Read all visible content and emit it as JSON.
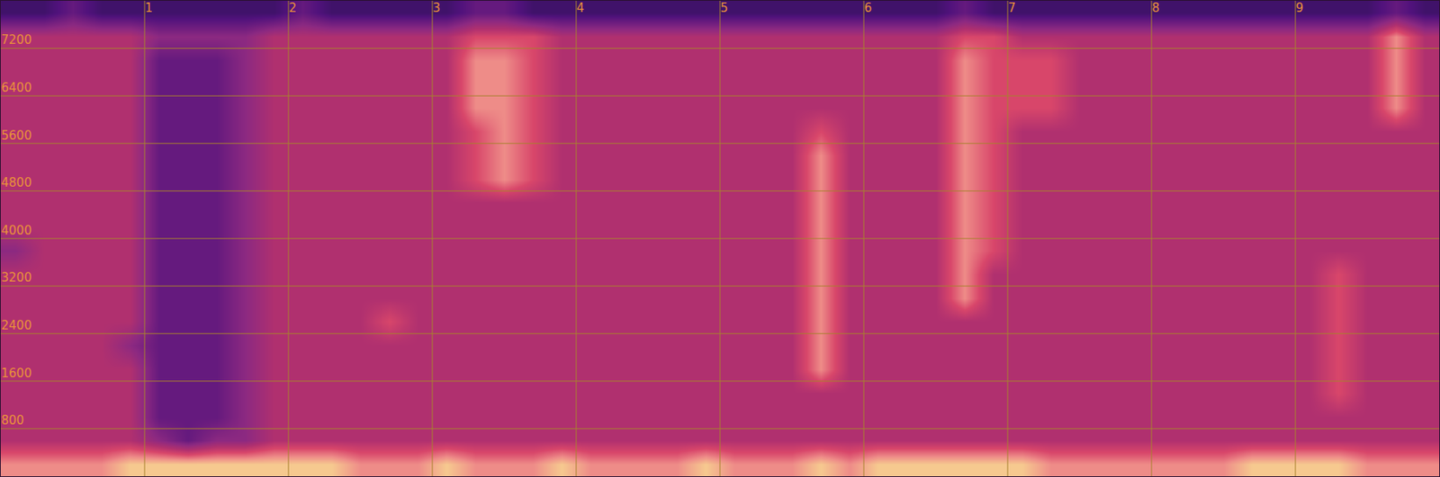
{
  "chart_data": {
    "type": "heatmap",
    "x": [
      0.1,
      0.3,
      0.5,
      0.7,
      0.9,
      1.1,
      1.3,
      1.5,
      1.7,
      1.9,
      2.1,
      2.3,
      2.5,
      2.7,
      2.9,
      3.1,
      3.3,
      3.5,
      3.7,
      3.9,
      4.1,
      4.3,
      4.5,
      4.7,
      4.9,
      5.1,
      5.3,
      5.5,
      5.7,
      5.9,
      6.1,
      6.3,
      6.5,
      6.7,
      6.9,
      7.1,
      7.3,
      7.5,
      7.7,
      7.9,
      8.1,
      8.3,
      8.5,
      8.7,
      8.9,
      9.1,
      9.3,
      9.5,
      9.7,
      9.9
    ],
    "y": [
      200,
      600,
      1000,
      1400,
      1800,
      2200,
      2600,
      3000,
      3400,
      3800,
      4200,
      4600,
      5000,
      5400,
      5800,
      6200,
      6600,
      7000,
      7400,
      7800
    ],
    "z": [
      [
        8,
        8,
        8,
        8,
        9,
        9,
        9,
        9,
        9,
        9,
        9,
        9,
        8,
        8,
        8,
        9,
        8,
        8,
        8,
        9,
        8,
        8,
        8,
        8,
        9,
        8,
        8,
        8,
        9,
        8,
        9,
        9,
        9,
        9,
        9,
        9,
        8,
        8,
        8,
        8,
        8,
        8,
        8,
        9,
        9,
        9,
        9,
        8,
        8,
        8
      ],
      [
        6,
        6,
        6,
        6,
        6,
        5,
        4,
        5,
        5,
        6,
        6,
        6,
        6,
        6,
        6,
        6,
        6,
        6,
        6,
        6,
        6,
        6,
        6,
        6,
        6,
        6,
        6,
        6,
        6,
        6,
        6,
        6,
        6,
        6,
        6,
        6,
        6,
        6,
        6,
        6,
        6,
        6,
        6,
        6,
        6,
        6,
        6,
        6,
        6,
        6
      ],
      [
        6,
        6,
        6,
        6,
        6,
        4,
        4,
        4,
        5,
        6,
        6,
        6,
        6,
        6,
        6,
        6,
        6,
        6,
        6,
        6,
        6,
        6,
        6,
        6,
        6,
        6,
        6,
        6,
        6,
        6,
        6,
        6,
        6,
        6,
        6,
        6,
        6,
        6,
        6,
        6,
        6,
        6,
        6,
        6,
        6,
        6,
        6,
        6,
        6,
        6
      ],
      [
        6,
        6,
        6,
        6,
        6,
        4,
        4,
        4,
        5,
        6,
        6,
        6,
        6,
        6,
        6,
        6,
        6,
        6,
        6,
        6,
        6,
        6,
        6,
        6,
        6,
        6,
        6,
        6,
        6,
        6,
        6,
        6,
        6,
        6,
        6,
        6,
        6,
        6,
        6,
        6,
        6,
        6,
        6,
        6,
        6,
        6,
        7,
        6,
        6,
        6
      ],
      [
        6,
        6,
        6,
        6,
        6,
        4,
        4,
        4,
        5,
        6,
        6,
        6,
        6,
        6,
        6,
        6,
        6,
        6,
        6,
        6,
        6,
        6,
        6,
        6,
        6,
        6,
        6,
        6,
        8,
        6,
        6,
        6,
        6,
        6,
        6,
        6,
        6,
        6,
        6,
        6,
        6,
        6,
        6,
        6,
        6,
        6,
        7,
        6,
        6,
        6
      ],
      [
        6,
        6,
        6,
        6,
        5,
        4,
        4,
        4,
        5,
        6,
        6,
        6,
        6,
        6,
        6,
        6,
        6,
        6,
        6,
        6,
        6,
        6,
        6,
        6,
        6,
        6,
        6,
        6,
        8,
        6,
        6,
        6,
        6,
        6,
        6,
        6,
        6,
        6,
        6,
        6,
        6,
        6,
        6,
        6,
        6,
        6,
        7,
        6,
        6,
        6
      ],
      [
        6,
        6,
        6,
        6,
        6,
        4,
        4,
        4,
        5,
        6,
        6,
        6,
        6,
        7,
        6,
        6,
        6,
        6,
        6,
        6,
        6,
        6,
        6,
        6,
        6,
        6,
        6,
        6,
        8,
        6,
        6,
        6,
        6,
        6,
        6,
        6,
        6,
        6,
        6,
        6,
        6,
        6,
        6,
        6,
        6,
        6,
        7,
        6,
        6,
        6
      ],
      [
        6,
        6,
        6,
        6,
        6,
        4,
        4,
        4,
        5,
        6,
        6,
        6,
        6,
        6,
        6,
        6,
        6,
        6,
        6,
        6,
        6,
        6,
        6,
        6,
        6,
        6,
        6,
        6,
        8,
        6,
        6,
        6,
        6,
        8,
        6,
        6,
        6,
        6,
        6,
        6,
        6,
        6,
        6,
        6,
        6,
        6,
        7,
        6,
        6,
        6
      ],
      [
        6,
        6,
        6,
        6,
        6,
        4,
        4,
        4,
        5,
        6,
        6,
        6,
        6,
        6,
        6,
        6,
        6,
        6,
        6,
        6,
        6,
        6,
        6,
        6,
        6,
        6,
        6,
        6,
        8,
        6,
        6,
        6,
        6,
        8,
        6,
        6,
        6,
        6,
        6,
        6,
        6,
        6,
        6,
        6,
        6,
        6,
        7,
        6,
        6,
        6
      ],
      [
        5,
        6,
        6,
        6,
        6,
        4,
        4,
        4,
        5,
        6,
        6,
        6,
        6,
        6,
        6,
        6,
        6,
        6,
        6,
        6,
        6,
        6,
        6,
        6,
        6,
        6,
        6,
        6,
        8,
        6,
        6,
        6,
        6,
        8,
        7,
        6,
        6,
        6,
        6,
        6,
        6,
        6,
        6,
        6,
        6,
        6,
        6,
        6,
        6,
        6
      ],
      [
        6,
        6,
        6,
        6,
        6,
        4,
        4,
        4,
        5,
        6,
        6,
        6,
        6,
        6,
        6,
        6,
        6,
        6,
        6,
        6,
        6,
        6,
        6,
        6,
        6,
        6,
        6,
        6,
        8,
        6,
        6,
        6,
        6,
        8,
        7,
        6,
        6,
        6,
        6,
        6,
        6,
        6,
        6,
        6,
        6,
        6,
        6,
        6,
        6,
        6
      ],
      [
        6,
        6,
        6,
        6,
        6,
        4,
        4,
        4,
        5,
        6,
        6,
        6,
        6,
        6,
        6,
        6,
        6,
        6,
        6,
        6,
        6,
        6,
        6,
        6,
        6,
        6,
        6,
        6,
        8,
        6,
        6,
        6,
        6,
        8,
        7,
        6,
        6,
        6,
        6,
        6,
        6,
        6,
        6,
        6,
        6,
        6,
        6,
        6,
        6,
        6
      ],
      [
        6,
        6,
        6,
        6,
        6,
        4,
        4,
        4,
        5,
        6,
        6,
        6,
        6,
        6,
        6,
        6,
        7,
        8,
        7,
        6,
        6,
        6,
        6,
        6,
        6,
        6,
        6,
        6,
        8,
        6,
        6,
        6,
        6,
        8,
        7,
        6,
        6,
        6,
        6,
        6,
        6,
        6,
        6,
        6,
        6,
        6,
        6,
        6,
        6,
        6
      ],
      [
        6,
        6,
        6,
        6,
        6,
        4,
        4,
        4,
        5,
        6,
        6,
        6,
        6,
        6,
        6,
        6,
        7,
        8,
        7,
        6,
        6,
        6,
        6,
        6,
        6,
        6,
        6,
        6,
        8,
        6,
        6,
        6,
        6,
        8,
        7,
        6,
        6,
        6,
        6,
        6,
        6,
        6,
        6,
        6,
        6,
        6,
        6,
        6,
        6,
        6
      ],
      [
        6,
        6,
        6,
        6,
        6,
        4,
        4,
        4,
        5,
        6,
        6,
        6,
        6,
        6,
        6,
        6,
        7,
        8,
        7,
        6,
        6,
        6,
        6,
        6,
        6,
        6,
        6,
        6,
        7,
        6,
        6,
        6,
        6,
        8,
        7,
        6,
        6,
        6,
        6,
        6,
        6,
        6,
        6,
        6,
        6,
        6,
        6,
        6,
        6,
        6
      ],
      [
        6,
        6,
        6,
        6,
        6,
        4,
        4,
        4,
        5,
        6,
        6,
        6,
        6,
        6,
        6,
        6,
        8,
        8,
        7,
        6,
        6,
        6,
        6,
        6,
        6,
        6,
        6,
        6,
        6,
        6,
        6,
        6,
        6,
        8,
        7,
        7,
        7,
        6,
        6,
        6,
        6,
        6,
        6,
        6,
        6,
        6,
        6,
        6,
        8,
        6
      ],
      [
        6,
        6,
        6,
        6,
        6,
        4,
        4,
        4,
        5,
        6,
        6,
        6,
        6,
        6,
        6,
        6,
        8,
        8,
        7,
        6,
        6,
        6,
        6,
        6,
        6,
        6,
        6,
        6,
        6,
        6,
        6,
        6,
        6,
        8,
        7,
        7,
        7,
        6,
        6,
        6,
        6,
        6,
        6,
        6,
        6,
        6,
        6,
        6,
        8,
        6
      ],
      [
        6,
        6,
        6,
        6,
        6,
        4,
        4,
        4,
        5,
        6,
        6,
        6,
        6,
        6,
        6,
        6,
        8,
        8,
        7,
        6,
        6,
        6,
        6,
        6,
        6,
        6,
        6,
        6,
        6,
        6,
        6,
        6,
        6,
        8,
        7,
        7,
        7,
        6,
        6,
        6,
        6,
        6,
        6,
        6,
        6,
        6,
        6,
        6,
        8,
        6
      ],
      [
        6,
        6,
        6,
        6,
        6,
        5,
        5,
        5,
        5,
        6,
        6,
        6,
        6,
        6,
        6,
        6,
        7,
        7,
        7,
        6,
        6,
        6,
        6,
        6,
        6,
        6,
        6,
        6,
        6,
        6,
        6,
        6,
        6,
        7,
        7,
        6,
        6,
        6,
        6,
        6,
        6,
        6,
        6,
        6,
        6,
        6,
        6,
        6,
        8,
        6
      ],
      [
        3,
        3,
        4,
        3,
        3,
        3,
        3,
        3,
        3,
        3,
        4,
        3,
        3,
        3,
        3,
        3,
        4,
        4,
        3,
        3,
        3,
        3,
        3,
        3,
        3,
        3,
        3,
        3,
        3,
        3,
        3,
        3,
        3,
        4,
        3,
        3,
        3,
        3,
        3,
        3,
        3,
        3,
        3,
        3,
        3,
        3,
        3,
        3,
        4,
        3
      ]
    ],
    "zlim": [
      0,
      10
    ],
    "xlim": [
      0,
      10
    ],
    "xticks": [
      1,
      2,
      3,
      4,
      5,
      6,
      7,
      8,
      9
    ],
    "ylim": [
      0,
      8000
    ],
    "yticks": [
      800,
      1600,
      2400,
      3200,
      4000,
      4800,
      5600,
      6400,
      7200
    ],
    "grid": true
  }
}
